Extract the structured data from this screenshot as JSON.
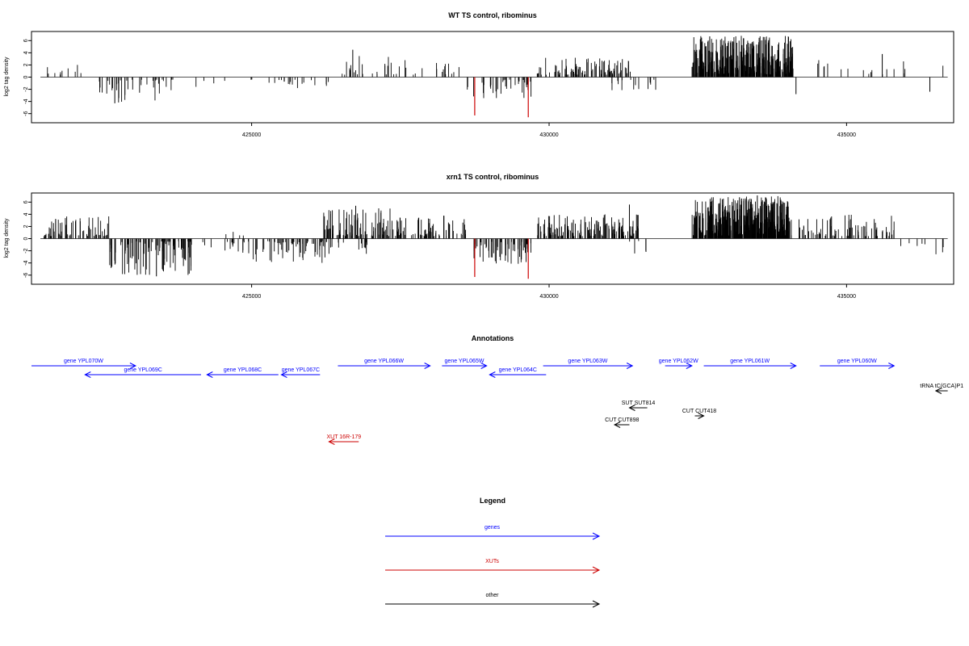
{
  "chart_data": [
    {
      "type": "bar",
      "title": "WT TS control, ribominus",
      "ylabel": "log2 tag density",
      "xlim": [
        421300,
        436800
      ],
      "ylim": [
        -7.5,
        7.5
      ],
      "yticks": [
        -6,
        -4,
        -2,
        0,
        2,
        4,
        6
      ],
      "xticks": [
        425000,
        430000,
        435000
      ],
      "xtick_labels": [
        "425000",
        "430000",
        "435000"
      ],
      "color": "#000000",
      "highlight_color": "#cc0000",
      "regions": [
        {
          "start": 421500,
          "end": 422300,
          "sign": 1,
          "density": 0.012,
          "max": 2.5
        },
        {
          "start": 422400,
          "end": 423700,
          "sign": -1,
          "density": 0.03,
          "max": 4.2
        },
        {
          "start": 424000,
          "end": 424600,
          "sign": -1,
          "density": 0.006,
          "max": 2.6
        },
        {
          "start": 424900,
          "end": 426400,
          "sign": -1,
          "density": 0.014,
          "max": 2.0
        },
        {
          "start": 426500,
          "end": 427600,
          "sign": 1,
          "density": 0.024,
          "max": 3.5
        },
        {
          "start": 427700,
          "end": 428500,
          "sign": 1,
          "density": 0.018,
          "max": 2.5
        },
        {
          "start": 428600,
          "end": 429700,
          "sign": -1,
          "density": 0.035,
          "max": 3.5
        },
        {
          "start": 429800,
          "end": 431400,
          "sign": 1,
          "density": 0.06,
          "max": 3.2
        },
        {
          "start": 431000,
          "end": 431800,
          "sign": -1,
          "density": 0.02,
          "max": 2.2
        },
        {
          "start": 432400,
          "end": 434100,
          "sign": 1,
          "density": 0.22,
          "max": 6.8
        },
        {
          "start": 434500,
          "end": 436700,
          "sign": 1,
          "density": 0.008,
          "max": 2.8
        }
      ],
      "spikes": [
        {
          "x": 426700,
          "y": 4.5
        },
        {
          "x": 432700,
          "y": 6.7
        },
        {
          "x": 433600,
          "y": 6.6
        },
        {
          "x": 435600,
          "y": 3.8
        },
        {
          "x": 436400,
          "y": -2.4
        },
        {
          "x": 434150,
          "y": -2.8
        },
        {
          "x": 422700,
          "y": -4.3
        }
      ],
      "highlight_spikes": [
        {
          "x": 428750,
          "y": -6.3
        },
        {
          "x": 429650,
          "y": -6.6
        }
      ]
    },
    {
      "type": "bar",
      "title": "xrn1 TS control, ribominus",
      "ylabel": "log2 tag density",
      "xlim": [
        421300,
        436800
      ],
      "ylim": [
        -7.5,
        7.5
      ],
      "yticks": [
        -6,
        -4,
        -2,
        0,
        2,
        4,
        6
      ],
      "xticks": [
        425000,
        430000,
        435000
      ],
      "xtick_labels": [
        "425000",
        "430000",
        "435000"
      ],
      "color": "#000000",
      "highlight_color": "#cc0000",
      "regions": [
        {
          "start": 421500,
          "end": 422600,
          "sign": 1,
          "density": 0.06,
          "max": 4.0
        },
        {
          "start": 422600,
          "end": 424000,
          "sign": -1,
          "density": 0.07,
          "max": 6.0
        },
        {
          "start": 424100,
          "end": 425000,
          "sign": -1,
          "density": 0.02,
          "max": 2.5
        },
        {
          "start": 424500,
          "end": 424900,
          "sign": 1,
          "density": 0.01,
          "max": 2.0
        },
        {
          "start": 425000,
          "end": 426300,
          "sign": -1,
          "density": 0.05,
          "max": 4.0
        },
        {
          "start": 426200,
          "end": 427600,
          "sign": 1,
          "density": 0.08,
          "max": 5.0
        },
        {
          "start": 426300,
          "end": 427000,
          "sign": -1,
          "density": 0.02,
          "max": 2.5
        },
        {
          "start": 427600,
          "end": 428600,
          "sign": 1,
          "density": 0.05,
          "max": 4.0
        },
        {
          "start": 428700,
          "end": 429700,
          "sign": -1,
          "density": 0.06,
          "max": 4.2
        },
        {
          "start": 429800,
          "end": 431500,
          "sign": 1,
          "density": 0.09,
          "max": 4.0
        },
        {
          "start": 431300,
          "end": 431800,
          "sign": -1,
          "density": 0.01,
          "max": 2.5
        },
        {
          "start": 432400,
          "end": 434100,
          "sign": 1,
          "density": 0.25,
          "max": 7.0
        },
        {
          "start": 434200,
          "end": 435800,
          "sign": 1,
          "density": 0.05,
          "max": 4.0
        },
        {
          "start": 435900,
          "end": 436700,
          "sign": -1,
          "density": 0.01,
          "max": 2.6
        }
      ],
      "spikes": [
        {
          "x": 423400,
          "y": -6.2
        },
        {
          "x": 426750,
          "y": 5.4
        },
        {
          "x": 431350,
          "y": 5.6
        },
        {
          "x": 433500,
          "y": 7.1
        },
        {
          "x": 433200,
          "y": 6.8
        }
      ],
      "highlight_spikes": [
        {
          "x": 428750,
          "y": -6.3
        },
        {
          "x": 429650,
          "y": -6.6
        }
      ]
    }
  ],
  "annotations": {
    "title": "Annotations",
    "features": [
      {
        "label": "gene YPL070W",
        "start": 421300,
        "end": 423050,
        "dir": "right",
        "color": "#0000ff",
        "row": 0
      },
      {
        "label": "gene YPL069C",
        "start": 422200,
        "end": 424150,
        "dir": "left",
        "color": "#0000ff",
        "row": 1
      },
      {
        "label": "gene YPL068C",
        "start": 424250,
        "end": 425450,
        "dir": "left",
        "color": "#0000ff",
        "row": 1
      },
      {
        "label": "gene YPL067C",
        "start": 425500,
        "end": 426150,
        "dir": "left",
        "color": "#0000ff",
        "row": 1
      },
      {
        "label": "gene YPL066W",
        "start": 426450,
        "end": 428000,
        "dir": "right",
        "color": "#0000ff",
        "row": 0
      },
      {
        "label": "gene YPL065W",
        "start": 428200,
        "end": 428950,
        "dir": "right",
        "color": "#0000ff",
        "row": 0
      },
      {
        "label": "gene YPL064C",
        "start": 429000,
        "end": 429950,
        "dir": "left",
        "color": "#0000ff",
        "row": 1
      },
      {
        "label": "gene YPL063W",
        "start": 429900,
        "end": 431400,
        "dir": "right",
        "color": "#0000ff",
        "row": 0
      },
      {
        "label": "gene YPL062W",
        "start": 431950,
        "end": 432400,
        "dir": "right",
        "color": "#0000ff",
        "row": 0
      },
      {
        "label": "gene YPL061W",
        "start": 432600,
        "end": 434150,
        "dir": "right",
        "color": "#0000ff",
        "row": 0
      },
      {
        "label": "gene YPL060W",
        "start": 434550,
        "end": 435800,
        "dir": "right",
        "color": "#0000ff",
        "row": 0
      },
      {
        "label": "tRNA tC(GCA)P1",
        "start": 436500,
        "end": 436700,
        "dir": "left",
        "color": "#000000",
        "row": 2
      },
      {
        "label": "SUT SUT814",
        "start": 431350,
        "end": 431650,
        "dir": "left",
        "color": "#000000",
        "row": 4
      },
      {
        "label": "CUT CUT418",
        "start": 432450,
        "end": 432600,
        "dir": "right",
        "color": "#000000",
        "row": 5
      },
      {
        "label": "CUT CUT898",
        "start": 431100,
        "end": 431350,
        "dir": "left",
        "color": "#000000",
        "row": 6
      },
      {
        "label": "XUT 16R-179",
        "start": 426300,
        "end": 426800,
        "dir": "left",
        "color": "#cc0000",
        "row": 8
      }
    ]
  },
  "legend": {
    "title": "Legend",
    "items": [
      {
        "label": "genes",
        "color": "#0000ff"
      },
      {
        "label": "XUTs",
        "color": "#cc0000"
      },
      {
        "label": "other",
        "color": "#000000"
      }
    ]
  }
}
